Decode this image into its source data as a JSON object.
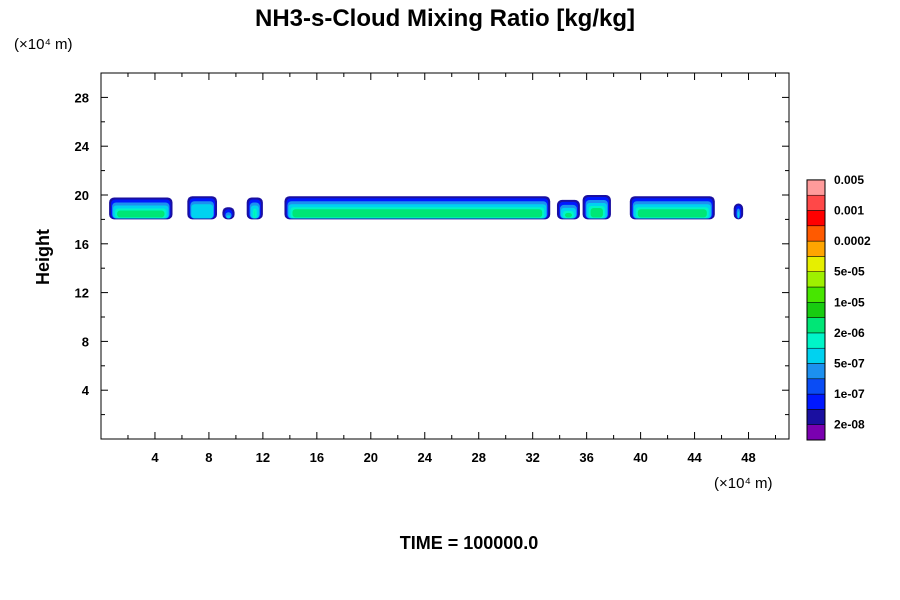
{
  "chart_data": {
    "type": "heatmap",
    "title": "NH3-s-Cloud Mixing Ratio [kg/kg]",
    "ylabel": "Height",
    "x_unit_label": "(×10⁴ m)",
    "y_unit_label": "(×10⁴ m)",
    "time_label": "TIME = 100000.0",
    "xlim": [
      0,
      51
    ],
    "ylim": [
      0,
      30
    ],
    "x_ticks": [
      4,
      8,
      12,
      16,
      20,
      24,
      28,
      32,
      36,
      40,
      44,
      48
    ],
    "y_ticks": [
      4,
      8,
      12,
      16,
      20,
      24,
      28
    ],
    "x_tick_labels": [
      "4",
      "8",
      "12",
      "16",
      "20",
      "24",
      "28",
      "32",
      "36",
      "40",
      "44",
      "48"
    ],
    "y_tick_labels": [
      "4",
      "8",
      "12",
      "16",
      "20",
      "24",
      "28"
    ],
    "colorbar": {
      "colors": [
        "#7a00b0",
        "#1a0fa0",
        "#0018ff",
        "#0a4cf5",
        "#1c90f0",
        "#00d2f0",
        "#00f5c8",
        "#00e676",
        "#18cc10",
        "#47e600",
        "#9ef000",
        "#e6ef00",
        "#ffa500",
        "#ff5a00",
        "#ff0000",
        "#ff4848",
        "#ff9b9b"
      ],
      "tick_labels": [
        "2e-08",
        "1e-07",
        "5e-07",
        "2e-06",
        "1e-05",
        "5e-05",
        "0.0002",
        "0.001",
        "0.005"
      ]
    },
    "cloud_segments": [
      {
        "x0": 0.6,
        "x1": 5.3,
        "top": 19.8,
        "core": true
      },
      {
        "x0": 6.4,
        "x1": 8.6,
        "top": 19.9,
        "core": false
      },
      {
        "x0": 9.0,
        "x1": 9.9,
        "top": 19.0,
        "core": false
      },
      {
        "x0": 10.8,
        "x1": 12.0,
        "top": 19.8,
        "core": true
      },
      {
        "x0": 13.6,
        "x1": 33.3,
        "top": 19.9,
        "core": true
      },
      {
        "x0": 33.8,
        "x1": 35.5,
        "top": 19.6,
        "core": true
      },
      {
        "x0": 35.7,
        "x1": 37.8,
        "top": 20.0,
        "core": true
      },
      {
        "x0": 39.2,
        "x1": 45.5,
        "top": 19.9,
        "core": true
      },
      {
        "x0": 46.9,
        "x1": 47.6,
        "top": 19.3,
        "core": false
      }
    ],
    "cloud_base": 18.0
  }
}
